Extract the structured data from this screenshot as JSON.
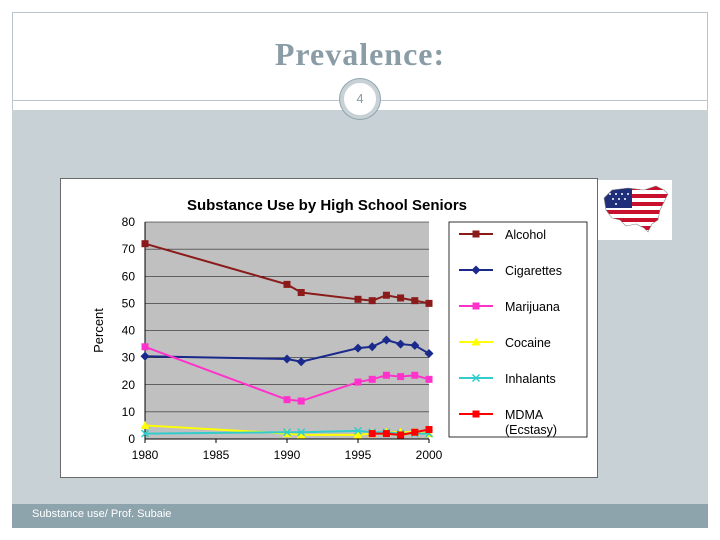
{
  "slide": {
    "title": "Prevalence:",
    "number": "4",
    "footer": "Substance use/ Prof. Subaie"
  },
  "colors": {
    "title": "#8a9ca6",
    "band": "#c8d2d6",
    "footer_bar": "#8ea4ad",
    "plot_bg": "#c0c0c0"
  },
  "chart_data": {
    "type": "line",
    "title": "Substance Use by High School Seniors",
    "xlabel": "",
    "ylabel": "Percent",
    "xlim": [
      1980,
      2000
    ],
    "ylim": [
      0,
      80
    ],
    "xticks": [
      1980,
      1985,
      1990,
      1995,
      2000
    ],
    "yticks": [
      0,
      10,
      20,
      30,
      40,
      50,
      60,
      70,
      80
    ],
    "grid": true,
    "legend": "right",
    "series": [
      {
        "name": "Alcohol",
        "color": "#8b1a1a",
        "marker": "square",
        "x": [
          1980,
          1990,
          1991,
          1995,
          1996,
          1997,
          1998,
          1999,
          2000
        ],
        "y": [
          72,
          57,
          54,
          51.5,
          51,
          53,
          52,
          51,
          50
        ]
      },
      {
        "name": "Cigarettes",
        "color": "#1a2a8c",
        "marker": "diamond",
        "x": [
          1980,
          1990,
          1991,
          1995,
          1996,
          1997,
          1998,
          1999,
          2000
        ],
        "y": [
          30.5,
          29.5,
          28.5,
          33.5,
          34,
          36.5,
          35,
          34.5,
          31.5
        ]
      },
      {
        "name": "Marijuana",
        "color": "#ff33cc",
        "marker": "square",
        "x": [
          1980,
          1990,
          1991,
          1995,
          1996,
          1997,
          1998,
          1999,
          2000
        ],
        "y": [
          34,
          14.5,
          14,
          21,
          22,
          23.5,
          23,
          23.5,
          22
        ]
      },
      {
        "name": "Cocaine",
        "color": "#ffff00",
        "marker": "triangle",
        "x": [
          1980,
          1990,
          1991,
          1995,
          1996,
          1997,
          1998,
          1999,
          2000
        ],
        "y": [
          5,
          2,
          1.5,
          1.5,
          2,
          2.5,
          2.5,
          2.5,
          2
        ]
      },
      {
        "name": "Inhalants",
        "color": "#33cccc",
        "marker": "x",
        "x": [
          1980,
          1990,
          1991,
          1995,
          1996,
          1997,
          1998,
          1999,
          2000
        ],
        "y": [
          2,
          2.5,
          2.5,
          3,
          2.5,
          2.5,
          2,
          2,
          2
        ]
      },
      {
        "name": "MDMA\n(Ecstasy)",
        "color": "#ff0000",
        "marker": "square",
        "x": [
          1996,
          1997,
          1998,
          1999,
          2000
        ],
        "y": [
          2,
          2,
          1.5,
          2.5,
          3.5
        ]
      }
    ]
  }
}
